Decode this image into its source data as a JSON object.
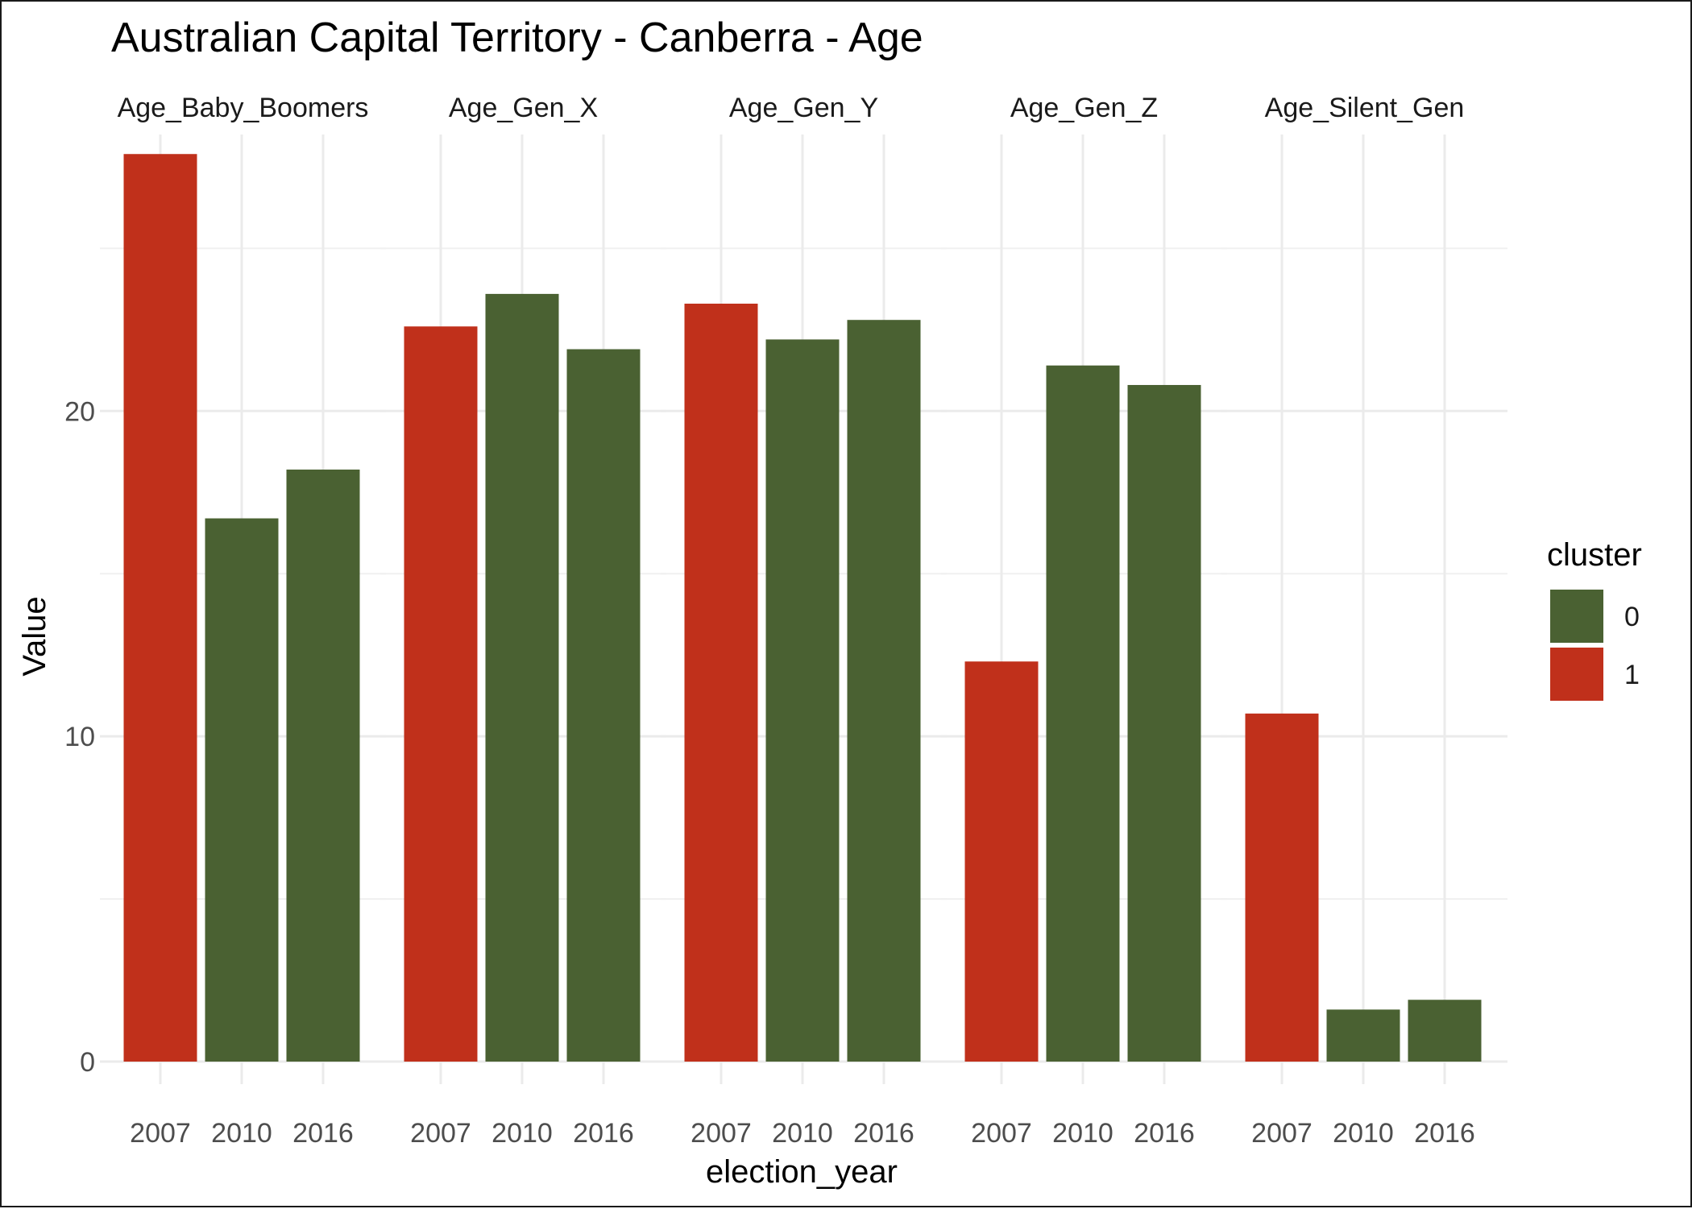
{
  "chart_data": {
    "type": "bar",
    "title": "Australian Capital Territory - Canberra - Age",
    "xlabel": "election_year",
    "ylabel": "Value",
    "categories": [
      "2007",
      "2010",
      "2016"
    ],
    "ylim": [
      0,
      28.5
    ],
    "yticks": [
      0,
      10,
      20
    ],
    "grid": true,
    "legend": {
      "title": "cluster",
      "placement": "right",
      "items": [
        {
          "label": "0",
          "color": "#4a6132"
        },
        {
          "label": "1",
          "color": "#c0301b"
        }
      ]
    },
    "panels": [
      {
        "name": "Age_Baby_Boomers",
        "values": [
          27.9,
          16.7,
          18.2
        ],
        "clusters": [
          "1",
          "0",
          "0"
        ]
      },
      {
        "name": "Age_Gen_X",
        "values": [
          22.6,
          23.6,
          21.9
        ],
        "clusters": [
          "1",
          "0",
          "0"
        ]
      },
      {
        "name": "Age_Gen_Y",
        "values": [
          23.3,
          22.2,
          22.8
        ],
        "clusters": [
          "1",
          "0",
          "0"
        ]
      },
      {
        "name": "Age_Gen_Z",
        "values": [
          12.3,
          21.4,
          20.8
        ],
        "clusters": [
          "1",
          "0",
          "0"
        ]
      },
      {
        "name": "Age_Silent_Gen",
        "values": [
          10.7,
          1.6,
          1.9
        ],
        "clusters": [
          "1",
          "0",
          "0"
        ]
      }
    ]
  }
}
